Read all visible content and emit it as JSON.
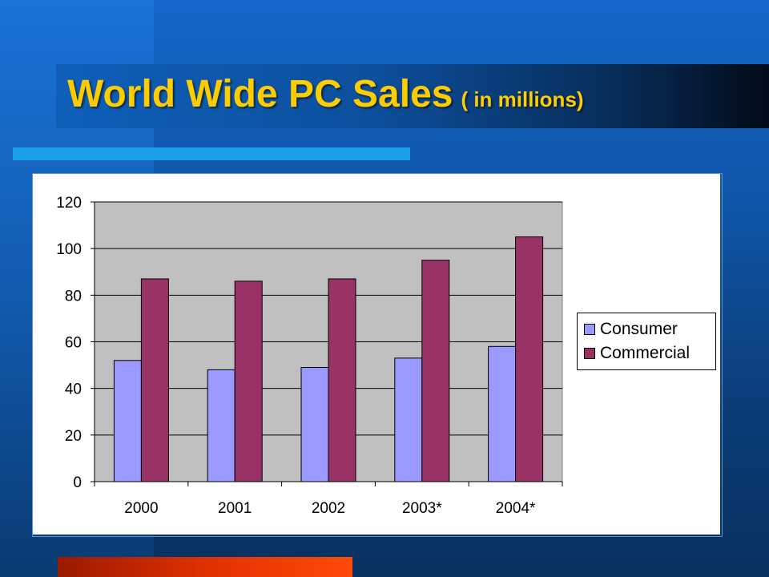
{
  "slide": {
    "title": "World Wide PC Sales",
    "subtitle": "( in millions)"
  },
  "colors": {
    "title": "#ffcc00",
    "accent_line": "#1aa0e6",
    "footer_bar": "#e03000",
    "plot_background": "#c0c0c0",
    "consumer": "#9999ff",
    "commercial": "#993366"
  },
  "chart_data": {
    "type": "bar",
    "title": "",
    "xlabel": "",
    "ylabel": "",
    "categories": [
      "2000",
      "2001",
      "2002",
      "2003*",
      "2004*"
    ],
    "series": [
      {
        "name": "Consumer",
        "color": "#9999ff",
        "values": [
          52,
          48,
          49,
          53,
          58
        ]
      },
      {
        "name": "Commercial",
        "color": "#993366",
        "values": [
          87,
          86,
          87,
          95,
          105
        ]
      }
    ],
    "ylim": [
      0,
      120
    ],
    "yticks": [
      0,
      20,
      40,
      60,
      80,
      100,
      120
    ],
    "grid": true,
    "legend": "right"
  }
}
